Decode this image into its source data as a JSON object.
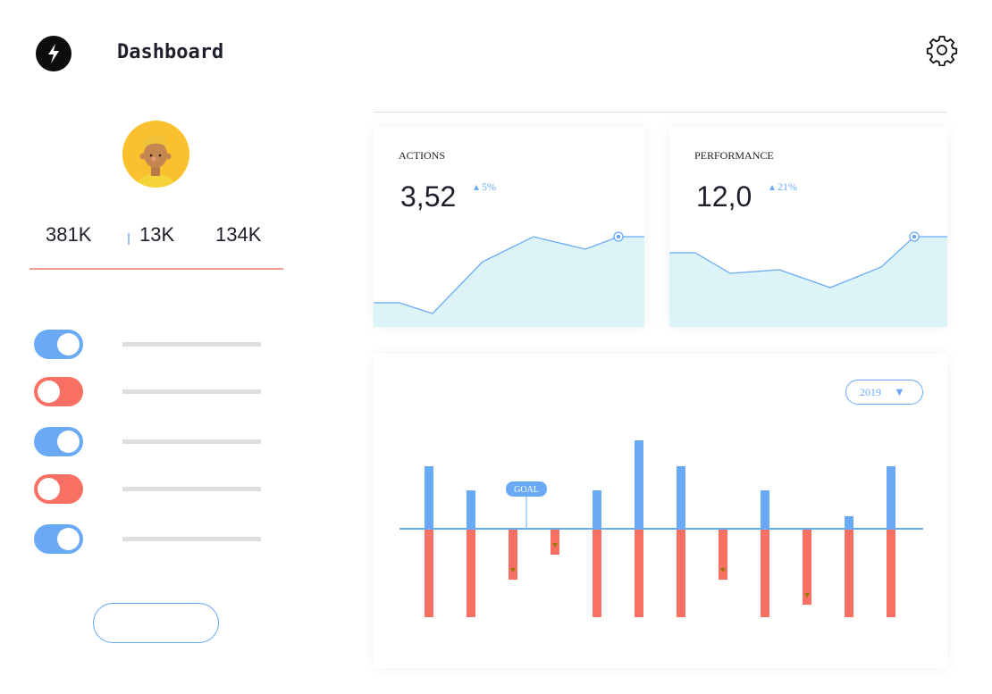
{
  "header": {
    "title": "Dashboard",
    "logo_icon": "lightning-bolt-icon",
    "settings_icon": "gear-icon"
  },
  "profile": {
    "stats": [
      "381K",
      "13K",
      "134K"
    ]
  },
  "toggles": [
    {
      "on": true,
      "color": "#6aaaf5"
    },
    {
      "on": false,
      "color": "#f87064"
    },
    {
      "on": true,
      "color": "#6aaaf5"
    },
    {
      "on": false,
      "color": "#f87064"
    },
    {
      "on": true,
      "color": "#6aaaf5"
    }
  ],
  "cards": [
    {
      "label": "ACTIONS",
      "value": "3,52",
      "delta": "5%",
      "values": [
        27,
        27,
        15,
        73,
        101,
        87,
        101,
        101
      ]
    },
    {
      "label": "PERFORMANCE",
      "value": "12,0",
      "delta": "21%",
      "values": [
        83,
        83,
        60,
        64,
        44,
        67,
        101,
        101
      ]
    }
  ],
  "colors": {
    "blue": "#6aaaf5",
    "red": "#f87064",
    "fill": "#dcf4f8",
    "marker": "#9a7a00"
  },
  "chart_data": {
    "type": "bar",
    "year_selector": "2019",
    "goal_label": "GOAL",
    "above_goal": [
      70,
      43,
      0,
      0,
      43,
      99,
      70,
      0,
      43,
      0,
      14,
      70
    ],
    "below_goal": [
      99,
      99,
      57,
      29,
      99,
      99,
      99,
      57,
      99,
      85,
      99,
      99
    ]
  }
}
